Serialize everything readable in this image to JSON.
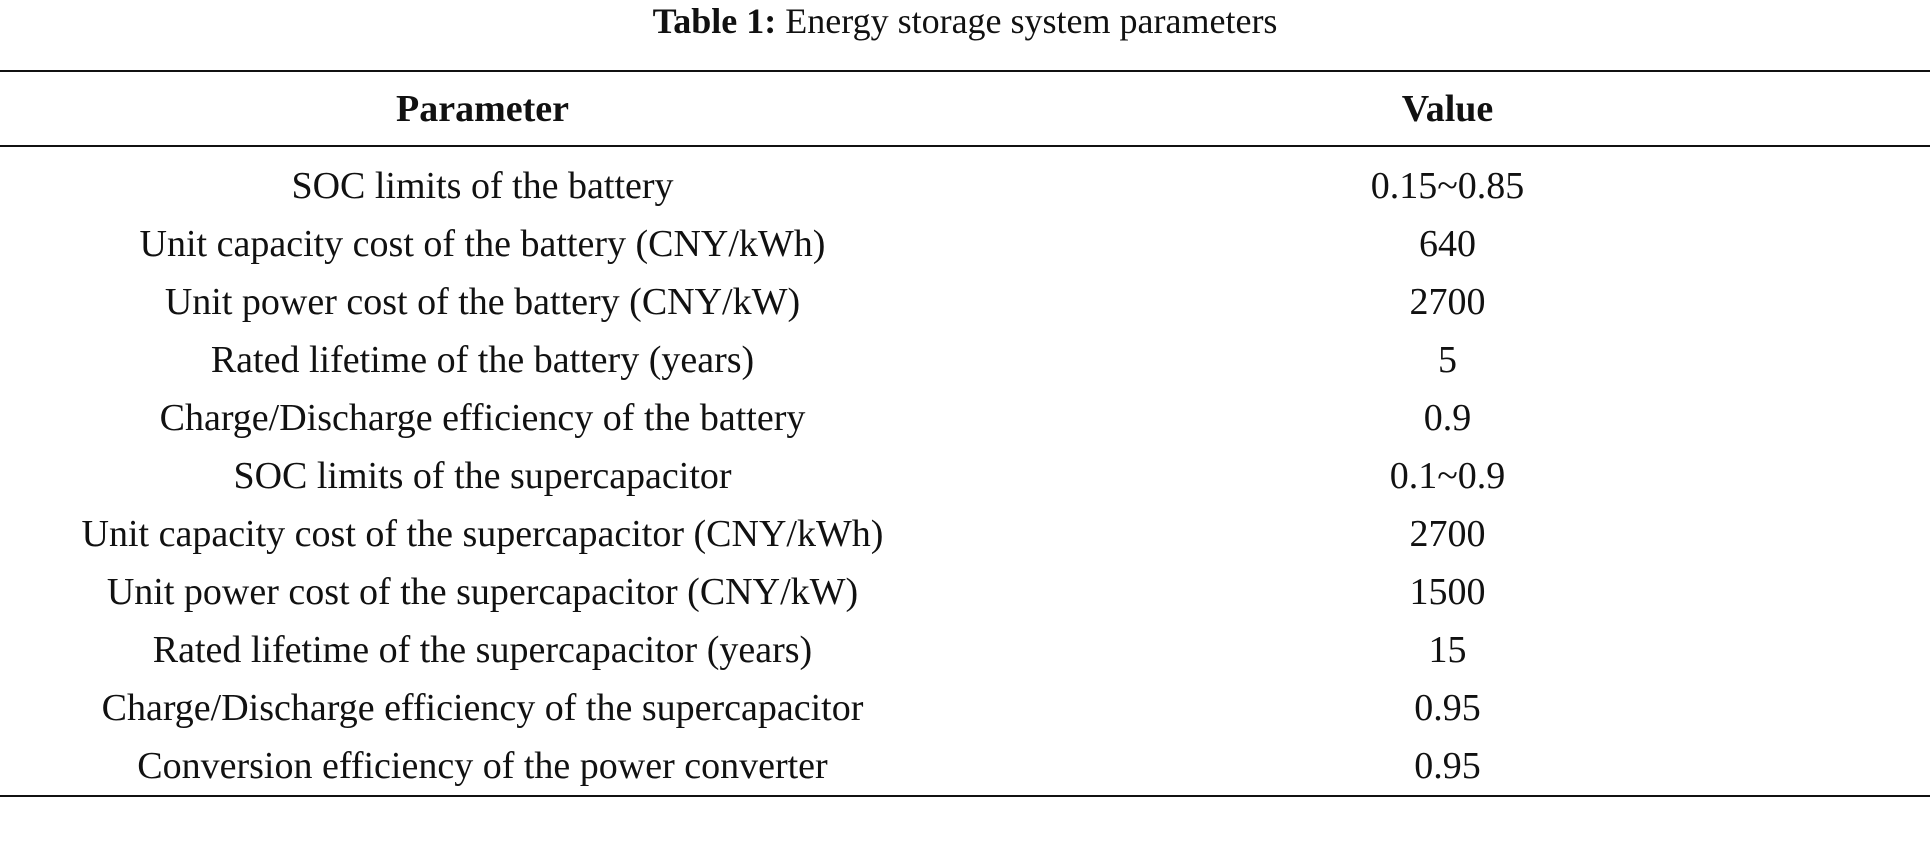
{
  "title": {
    "label": "Table 1:",
    "text": "Energy storage system parameters"
  },
  "table": {
    "columns": [
      "Parameter",
      "Value"
    ],
    "rows": [
      [
        "SOC limits of the battery",
        "0.15~0.85"
      ],
      [
        "Unit capacity cost of the battery (CNY/kWh)",
        "640"
      ],
      [
        "Unit power cost of the battery (CNY/kW)",
        "2700"
      ],
      [
        "Rated lifetime of the battery (years)",
        "5"
      ],
      [
        "Charge/Discharge efficiency of the battery",
        "0.9"
      ],
      [
        "SOC limits of the supercapacitor",
        "0.1~0.9"
      ],
      [
        "Unit capacity cost of the supercapacitor (CNY/kWh)",
        "2700"
      ],
      [
        "Unit power cost of the supercapacitor (CNY/kW)",
        "1500"
      ],
      [
        "Rated lifetime of the supercapacitor (years)",
        "15"
      ],
      [
        "Charge/Discharge efficiency of the supercapacitor",
        "0.95"
      ],
      [
        "Conversion efficiency of the power converter",
        "0.95"
      ]
    ]
  }
}
